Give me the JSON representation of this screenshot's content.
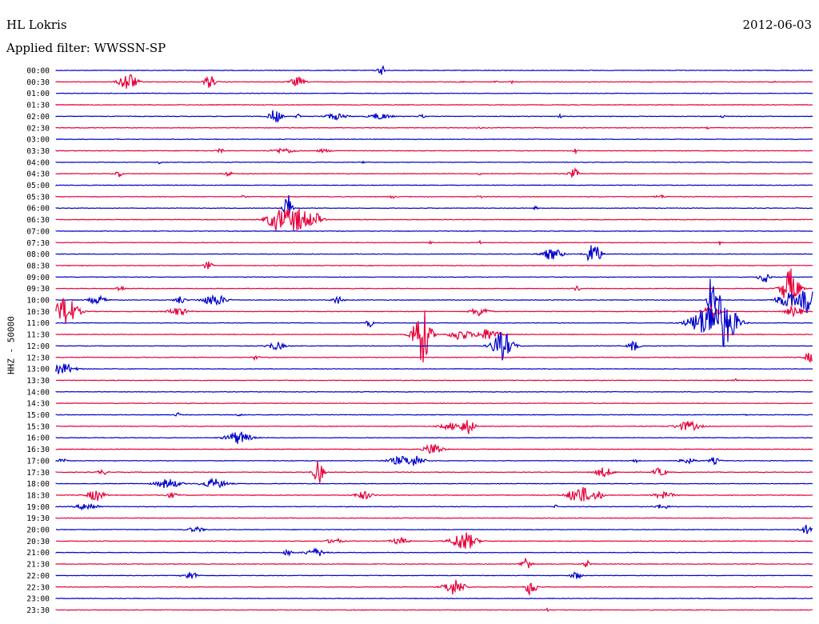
{
  "header": {
    "station": "HL Lokris",
    "filter": "Applied filter: WWSSN-SP",
    "date": "2012-06-03"
  },
  "chart_data": {
    "type": "line",
    "title": "HL Lokris",
    "subtitle": "Applied filter: WWSSN-SP",
    "ylabel": "HHZ - 50000",
    "date": "2012-06-03",
    "colors": {
      "even": "#0000cc",
      "odd": "#e8003a"
    },
    "rows": [
      {
        "label": "00:00",
        "events": [
          [
            478,
            5,
            6
          ]
        ]
      },
      {
        "label": "00:30",
        "events": [
          [
            160,
            10,
            12
          ],
          [
            262,
            6,
            9
          ],
          [
            372,
            8,
            6
          ],
          [
            577,
            3,
            3
          ],
          [
            620,
            2,
            2
          ],
          [
            640,
            2,
            2
          ],
          [
            967,
            2,
            3
          ]
        ]
      },
      {
        "label": "01:00",
        "events": []
      },
      {
        "label": "01:30",
        "events": [
          [
            841,
            1,
            1
          ]
        ]
      },
      {
        "label": "02:00",
        "events": [
          [
            344,
            7,
            9
          ],
          [
            372,
            3,
            3
          ],
          [
            420,
            12,
            4
          ],
          [
            475,
            12,
            4
          ],
          [
            527,
            4,
            2
          ],
          [
            700,
            3,
            2
          ],
          [
            903,
            3,
            2
          ]
        ]
      },
      {
        "label": "02:30",
        "events": [
          [
            600,
            3,
            1
          ],
          [
            885,
            2,
            1
          ]
        ]
      },
      {
        "label": "03:00",
        "events": []
      },
      {
        "label": "03:30",
        "events": [
          [
            275,
            4,
            3
          ],
          [
            355,
            14,
            3
          ],
          [
            405,
            8,
            2
          ],
          [
            720,
            3,
            3
          ]
        ]
      },
      {
        "label": "04:00",
        "events": [
          [
            200,
            2,
            2
          ],
          [
            455,
            2,
            2
          ]
        ]
      },
      {
        "label": "04:30",
        "events": [
          [
            148,
            4,
            4
          ],
          [
            285,
            5,
            3
          ],
          [
            600,
            2,
            2
          ],
          [
            718,
            6,
            6
          ]
        ]
      },
      {
        "label": "05:00",
        "events": []
      },
      {
        "label": "05:30",
        "events": [
          [
            305,
            3,
            2
          ],
          [
            490,
            4,
            2
          ],
          [
            600,
            3,
            2
          ],
          [
            825,
            6,
            2
          ]
        ]
      },
      {
        "label": "06:00",
        "events": [
          [
            360,
            5,
            18
          ],
          [
            670,
            2,
            3
          ]
        ]
      },
      {
        "label": "06:30",
        "events": [
          [
            345,
            12,
            11
          ],
          [
            370,
            18,
            15
          ],
          [
            395,
            8,
            6
          ]
        ]
      },
      {
        "label": "07:00",
        "events": []
      },
      {
        "label": "07:30",
        "events": [
          [
            540,
            3,
            2
          ],
          [
            600,
            2,
            2
          ],
          [
            900,
            2,
            2
          ]
        ]
      },
      {
        "label": "08:00",
        "events": [
          [
            690,
            12,
            7
          ],
          [
            742,
            8,
            16
          ]
        ]
      },
      {
        "label": "08:30",
        "events": [
          [
            260,
            5,
            5
          ]
        ]
      },
      {
        "label": "09:00",
        "events": [
          [
            955,
            6,
            8
          ]
        ]
      },
      {
        "label": "09:30",
        "events": [
          [
            150,
            6,
            3
          ],
          [
            722,
            4,
            3
          ],
          [
            988,
            10,
            25
          ]
        ]
      },
      {
        "label": "10:00",
        "events": [
          [
            122,
            10,
            5
          ],
          [
            225,
            6,
            5
          ],
          [
            268,
            14,
            7
          ],
          [
            422,
            6,
            5
          ],
          [
            890,
            4,
            38
          ],
          [
            985,
            14,
            9
          ],
          [
            1010,
            8,
            18
          ]
        ]
      },
      {
        "label": "10:30",
        "events": [
          [
            82,
            14,
            18
          ],
          [
            222,
            12,
            5
          ],
          [
            600,
            10,
            6
          ],
          [
            890,
            10,
            8
          ],
          [
            993,
            10,
            6
          ]
        ]
      },
      {
        "label": "11:00",
        "events": [
          [
            462,
            4,
            5
          ],
          [
            880,
            18,
            16
          ],
          [
            900,
            14,
            28
          ],
          [
            915,
            12,
            10
          ]
        ]
      },
      {
        "label": "11:30",
        "events": [
          [
            527,
            10,
            38
          ],
          [
            575,
            12,
            7
          ],
          [
            610,
            14,
            7
          ]
        ]
      },
      {
        "label": "12:00",
        "events": [
          [
            345,
            10,
            5
          ],
          [
            628,
            12,
            18
          ],
          [
            792,
            6,
            7
          ]
        ]
      },
      {
        "label": "12:30",
        "events": [
          [
            320,
            4,
            3
          ],
          [
            1012,
            6,
            6
          ]
        ]
      },
      {
        "label": "13:00",
        "events": [
          [
            78,
            14,
            7
          ]
        ]
      },
      {
        "label": "13:30",
        "events": [
          [
            920,
            3,
            2
          ]
        ]
      },
      {
        "label": "14:00",
        "events": []
      },
      {
        "label": "14:30",
        "events": []
      },
      {
        "label": "15:00",
        "events": [
          [
            222,
            3,
            3
          ],
          [
            300,
            3,
            2
          ],
          [
            930,
            3,
            2
          ]
        ]
      },
      {
        "label": "15:30",
        "events": [
          [
            565,
            14,
            4
          ],
          [
            585,
            8,
            9
          ],
          [
            860,
            14,
            6
          ]
        ]
      },
      {
        "label": "16:00",
        "events": [
          [
            298,
            14,
            8
          ]
        ]
      },
      {
        "label": "16:30",
        "events": [
          [
            542,
            10,
            8
          ]
        ]
      },
      {
        "label": "17:00",
        "events": [
          [
            78,
            4,
            3
          ],
          [
            500,
            14,
            5
          ],
          [
            520,
            10,
            6
          ],
          [
            795,
            5,
            2
          ],
          [
            860,
            10,
            3
          ],
          [
            893,
            6,
            4
          ]
        ]
      },
      {
        "label": "17:30",
        "events": [
          [
            128,
            6,
            3
          ],
          [
            398,
            6,
            15
          ],
          [
            755,
            10,
            6
          ],
          [
            825,
            8,
            5
          ]
        ]
      },
      {
        "label": "18:00",
        "events": [
          [
            210,
            14,
            6
          ],
          [
            268,
            14,
            6
          ]
        ]
      },
      {
        "label": "18:30",
        "events": [
          [
            120,
            10,
            7
          ],
          [
            215,
            8,
            3
          ],
          [
            455,
            10,
            5
          ],
          [
            725,
            14,
            11
          ],
          [
            748,
            6,
            5
          ],
          [
            830,
            12,
            4
          ]
        ]
      },
      {
        "label": "19:00",
        "events": [
          [
            110,
            12,
            5
          ],
          [
            695,
            2,
            2
          ],
          [
            828,
            8,
            3
          ]
        ]
      },
      {
        "label": "19:30",
        "events": []
      },
      {
        "label": "20:00",
        "events": [
          [
            245,
            10,
            3
          ],
          [
            1010,
            8,
            6
          ]
        ]
      },
      {
        "label": "20:30",
        "events": [
          [
            418,
            8,
            4
          ],
          [
            500,
            10,
            4
          ],
          [
            580,
            14,
            12
          ]
        ]
      },
      {
        "label": "21:00",
        "events": [
          [
            360,
            5,
            4
          ],
          [
            395,
            12,
            5
          ]
        ]
      },
      {
        "label": "21:30",
        "events": [
          [
            658,
            6,
            9
          ],
          [
            733,
            4,
            5
          ]
        ]
      },
      {
        "label": "22:00",
        "events": [
          [
            238,
            8,
            5
          ],
          [
            720,
            6,
            5
          ]
        ]
      },
      {
        "label": "22:30",
        "events": [
          [
            568,
            12,
            10
          ],
          [
            664,
            6,
            12
          ]
        ]
      },
      {
        "label": "23:00",
        "events": []
      },
      {
        "label": "23:30",
        "events": [
          [
            685,
            2,
            2
          ]
        ]
      }
    ]
  }
}
